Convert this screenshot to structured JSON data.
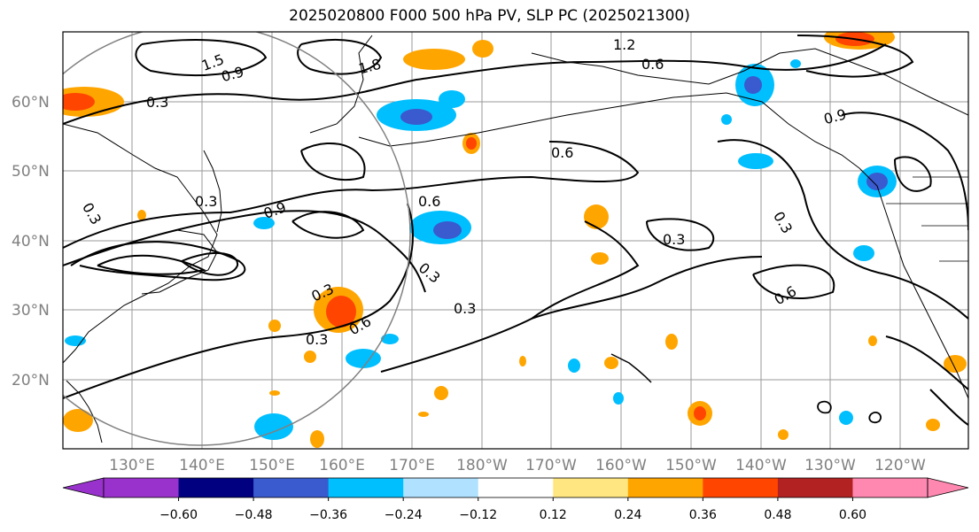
{
  "title": "2025020800 F000 500 hPa PV, SLP PC (2025021300)",
  "map": {
    "lat_labels": [
      "60°N",
      "50°N",
      "40°N",
      "30°N",
      "20°N"
    ],
    "lon_labels": [
      "130°E",
      "140°E",
      "150°E",
      "160°E",
      "170°E",
      "180°W",
      "170°W",
      "160°W",
      "150°W",
      "140°W",
      "130°W",
      "120°W"
    ],
    "contour_labels": [
      "0.3",
      "0.3",
      "0.3",
      "0.3",
      "0.3",
      "0.3",
      "0.3",
      "0.3",
      "0.6",
      "0.6",
      "0.6",
      "0.6",
      "0.6",
      "0.9",
      "0.9",
      "0.9",
      "1.5",
      "1.8",
      "1.2",
      "0.3"
    ]
  },
  "colorbar": {
    "ticks": [
      "−0.60",
      "−0.48",
      "−0.36",
      "−0.24",
      "−0.12",
      "0.12",
      "0.24",
      "0.36",
      "0.48",
      "0.60"
    ],
    "colors": [
      "#9932cc",
      "#000080",
      "#3a5acf",
      "#00bfff",
      "#b0e2ff",
      "#ffffff",
      "#ffe680",
      "#ffa500",
      "#ff4500",
      "#b22222",
      "#ff88b0"
    ]
  }
}
